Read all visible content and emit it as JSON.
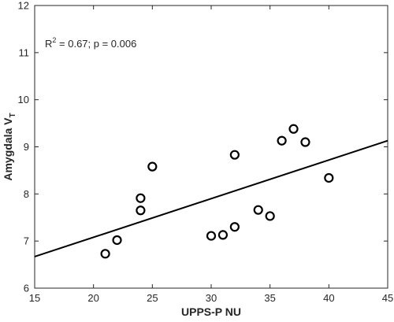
{
  "chart_data": {
    "type": "scatter",
    "xlabel": "UPPS-P NU",
    "ylabel_main": "Amygdala V",
    "ylabel_sub": "T",
    "annotation": {
      "r_prefix": "R",
      "r_exp": "2",
      "rest": " = 0.67; p = 0.006"
    },
    "xlim": [
      15,
      45
    ],
    "ylim": [
      6,
      12
    ],
    "xticks": [
      15,
      20,
      25,
      30,
      35,
      40,
      45
    ],
    "yticks": [
      6,
      7,
      8,
      9,
      10,
      11,
      12
    ],
    "points": [
      {
        "x": 21,
        "y": 6.73
      },
      {
        "x": 22,
        "y": 7.02
      },
      {
        "x": 24,
        "y": 7.65
      },
      {
        "x": 24,
        "y": 7.91
      },
      {
        "x": 25,
        "y": 8.58
      },
      {
        "x": 30,
        "y": 7.11
      },
      {
        "x": 31,
        "y": 7.13
      },
      {
        "x": 32,
        "y": 7.3
      },
      {
        "x": 32,
        "y": 8.83
      },
      {
        "x": 34,
        "y": 7.66
      },
      {
        "x": 35,
        "y": 7.53
      },
      {
        "x": 36,
        "y": 9.13
      },
      {
        "x": 37,
        "y": 9.38
      },
      {
        "x": 38,
        "y": 9.1
      },
      {
        "x": 40,
        "y": 8.34
      }
    ],
    "fit_line": {
      "x": [
        15,
        45
      ],
      "y": [
        6.67,
        9.13
      ]
    },
    "grid": false,
    "marker": "open-circle",
    "colors": {
      "marker": "#000000",
      "line": "#000000",
      "axis": "#262626"
    }
  }
}
